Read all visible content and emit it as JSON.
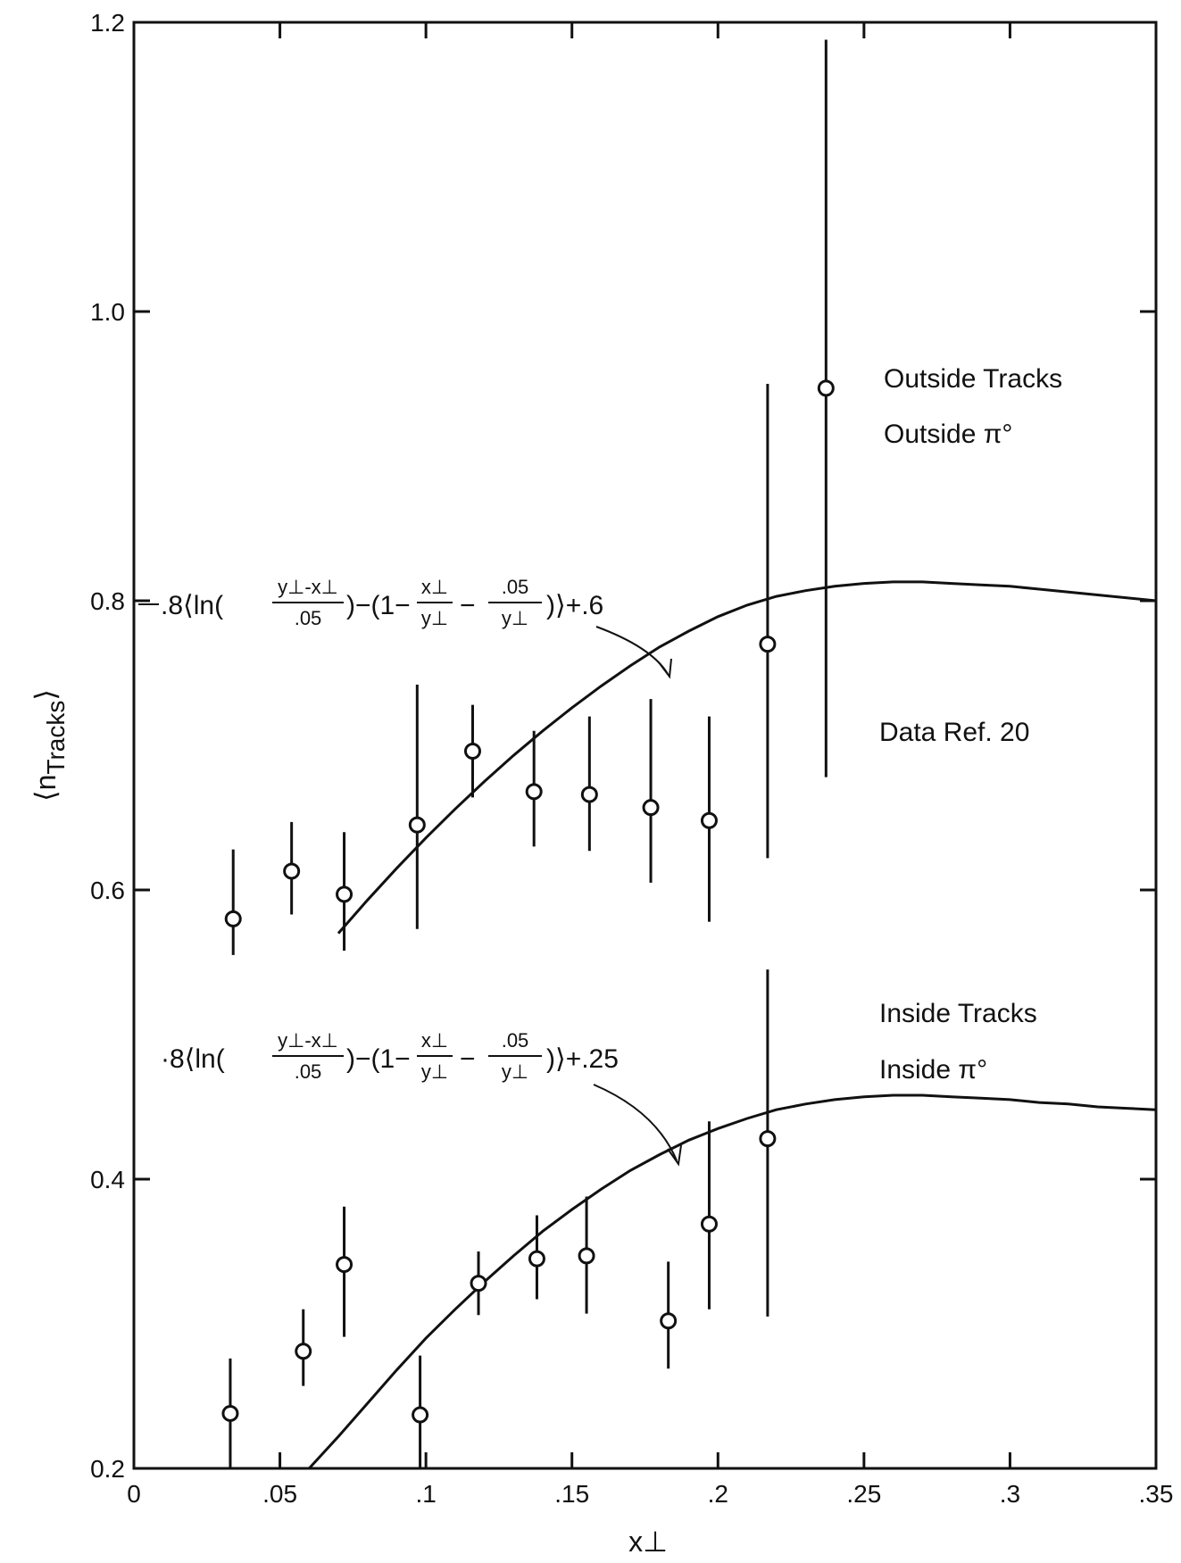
{
  "chart_data": {
    "type": "scatter",
    "title": "",
    "xlabel": "x⊥",
    "ylabel": "⟨n",
    "ylabel_sub": "Tracks",
    "ylabel_close": "⟩",
    "xlim": [
      0,
      0.35
    ],
    "ylim": [
      0.2,
      1.2
    ],
    "grid": false,
    "x_ticks": [
      {
        "value": 0,
        "label": "0"
      },
      {
        "value": 0.05,
        "label": ".05"
      },
      {
        "value": 0.1,
        "label": ".1"
      },
      {
        "value": 0.15,
        "label": ".15"
      },
      {
        "value": 0.2,
        "label": ".2"
      },
      {
        "value": 0.25,
        "label": ".25"
      },
      {
        "value": 0.3,
        "label": ".3"
      },
      {
        "value": 0.35,
        "label": ".35"
      }
    ],
    "y_ticks": [
      {
        "value": 0.2,
        "label": "0.2"
      },
      {
        "value": 0.4,
        "label": "0.4"
      },
      {
        "value": 0.6,
        "label": "0.6"
      },
      {
        "value": 0.8,
        "label": "0.8"
      },
      {
        "value": 1.0,
        "label": "1.0"
      },
      {
        "value": 1.2,
        "label": "1.2"
      }
    ],
    "series": [
      {
        "points": [
          {
            "x": 0.034,
            "y": 0.58,
            "lo": 0.555,
            "hi": 0.628
          },
          {
            "x": 0.054,
            "y": 0.613,
            "lo": 0.583,
            "hi": 0.647
          },
          {
            "x": 0.072,
            "y": 0.597,
            "lo": 0.558,
            "hi": 0.64
          },
          {
            "x": 0.097,
            "y": 0.645,
            "lo": 0.573,
            "hi": 0.742
          },
          {
            "x": 0.116,
            "y": 0.696,
            "lo": 0.664,
            "hi": 0.728
          },
          {
            "x": 0.137,
            "y": 0.668,
            "lo": 0.63,
            "hi": 0.71
          },
          {
            "x": 0.156,
            "y": 0.666,
            "lo": 0.627,
            "hi": 0.72
          },
          {
            "x": 0.177,
            "y": 0.657,
            "lo": 0.605,
            "hi": 0.732
          },
          {
            "x": 0.197,
            "y": 0.648,
            "lo": 0.578,
            "hi": 0.72
          },
          {
            "x": 0.217,
            "y": 0.77,
            "lo": 0.622,
            "hi": 0.95
          },
          {
            "x": 0.237,
            "y": 0.947,
            "lo": 0.678,
            "hi": 1.188
          }
        ]
      },
      {
        "points": [
          {
            "x": 0.033,
            "y": 0.238,
            "lo": 0.2,
            "hi": 0.276
          },
          {
            "x": 0.058,
            "y": 0.281,
            "lo": 0.257,
            "hi": 0.31
          },
          {
            "x": 0.072,
            "y": 0.341,
            "lo": 0.291,
            "hi": 0.381
          },
          {
            "x": 0.098,
            "y": 0.237,
            "lo": 0.2,
            "hi": 0.278
          },
          {
            "x": 0.118,
            "y": 0.328,
            "lo": 0.306,
            "hi": 0.35
          },
          {
            "x": 0.138,
            "y": 0.345,
            "lo": 0.317,
            "hi": 0.375
          },
          {
            "x": 0.155,
            "y": 0.347,
            "lo": 0.307,
            "hi": 0.388
          },
          {
            "x": 0.183,
            "y": 0.302,
            "lo": 0.269,
            "hi": 0.343
          },
          {
            "x": 0.197,
            "y": 0.369,
            "lo": 0.31,
            "hi": 0.44
          },
          {
            "x": 0.217,
            "y": 0.428,
            "lo": 0.305,
            "hi": 0.545
          }
        ]
      }
    ],
    "curves": [
      {
        "x": [
          0.07,
          0.08,
          0.09,
          0.1,
          0.11,
          0.12,
          0.13,
          0.14,
          0.15,
          0.16,
          0.17,
          0.18,
          0.19,
          0.2,
          0.21,
          0.22,
          0.23,
          0.24,
          0.25,
          0.26,
          0.27,
          0.28,
          0.29,
          0.3,
          0.31,
          0.32,
          0.33,
          0.34,
          0.35
        ],
        "y": [
          0.57,
          0.593,
          0.615,
          0.636,
          0.656,
          0.675,
          0.693,
          0.71,
          0.726,
          0.741,
          0.755,
          0.768,
          0.779,
          0.789,
          0.797,
          0.803,
          0.807,
          0.81,
          0.812,
          0.813,
          0.813,
          0.812,
          0.811,
          0.81,
          0.808,
          0.806,
          0.804,
          0.802,
          0.8
        ]
      },
      {
        "x": [
          0.06,
          0.07,
          0.08,
          0.09,
          0.1,
          0.11,
          0.12,
          0.13,
          0.14,
          0.15,
          0.16,
          0.17,
          0.18,
          0.19,
          0.2,
          0.21,
          0.22,
          0.23,
          0.24,
          0.25,
          0.26,
          0.27,
          0.28,
          0.29,
          0.3,
          0.31,
          0.32,
          0.33,
          0.34,
          0.35
        ],
        "y": [
          0.2,
          0.222,
          0.245,
          0.268,
          0.29,
          0.31,
          0.329,
          0.347,
          0.364,
          0.379,
          0.393,
          0.406,
          0.417,
          0.427,
          0.435,
          0.442,
          0.448,
          0.452,
          0.455,
          0.457,
          0.458,
          0.458,
          0.457,
          0.456,
          0.455,
          0.453,
          0.452,
          0.45,
          0.449,
          0.448
        ]
      }
    ],
    "annotations": [
      {
        "text": "Outside Tracks"
      },
      {
        "text": "Outside π°"
      },
      {
        "text": "Data Ref. 20"
      },
      {
        "text": "Inside Tracks"
      },
      {
        "text": "Inside π°"
      }
    ],
    "formulas": [
      {
        "prefix": ".8⟨ln(",
        "frac1_num": "y⊥-x⊥",
        "frac1_den": ".05",
        "mid": ")−(1−",
        "frac2_num": "x⊥",
        "frac2_den": "y⊥",
        "minus": "−",
        "frac3_num": ".05",
        "frac3_den": "y⊥",
        "suffix": ")⟩+.6"
      },
      {
        "prefix": "·8⟨ln(",
        "frac1_num": "y⊥-x⊥",
        "frac1_den": ".05",
        "mid": ")−(1−",
        "frac2_num": "x⊥",
        "frac2_den": "y⊥",
        "minus": "−",
        "frac3_num": ".05",
        "frac3_den": "y⊥",
        "suffix": ")⟩+.25"
      }
    ]
  }
}
